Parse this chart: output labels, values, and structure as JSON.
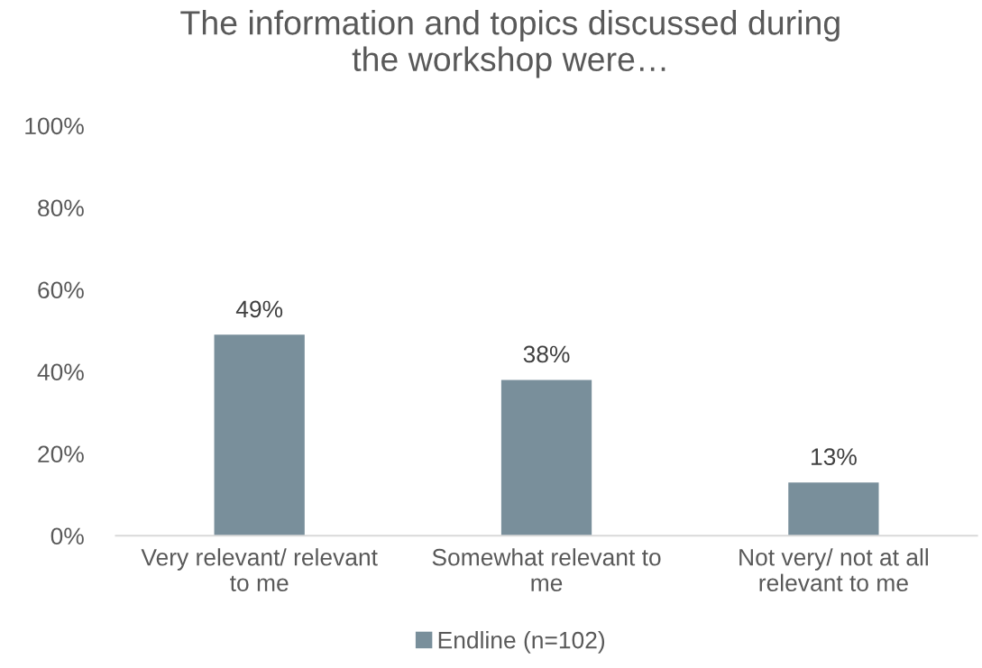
{
  "chart_data": {
    "type": "bar",
    "title": "The information and topics discussed during\nthe workshop were…",
    "categories": [
      "Very relevant/ relevant\nto me",
      "Somewhat relevant to\nme",
      "Not very/ not at all\nrelevant to me"
    ],
    "series": [
      {
        "name": "Endline (n=102)",
        "color": "#798f9b",
        "values": [
          49,
          38,
          13
        ],
        "value_labels": [
          "49%",
          "38%",
          "13%"
        ]
      }
    ],
    "ylim": [
      0,
      100
    ],
    "yticks": [
      {
        "value": 0,
        "label": "0%"
      },
      {
        "value": 20,
        "label": "20%"
      },
      {
        "value": 40,
        "label": "40%"
      },
      {
        "value": 60,
        "label": "60%"
      },
      {
        "value": 80,
        "label": "80%"
      },
      {
        "value": 100,
        "label": "100%"
      }
    ],
    "grid": false,
    "legend": "bottom"
  }
}
